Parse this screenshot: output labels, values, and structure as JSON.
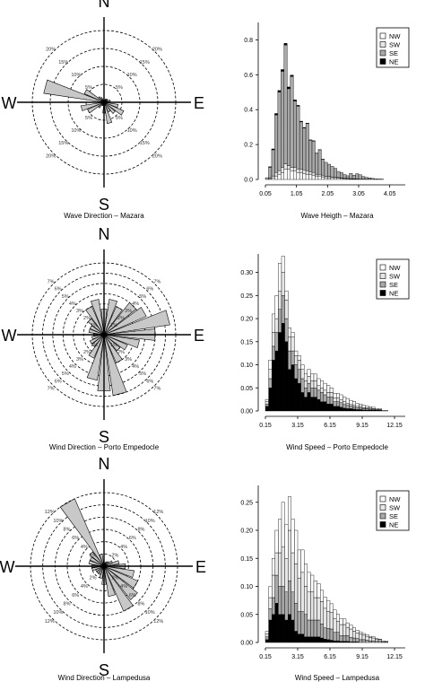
{
  "chart_data": [
    {
      "type": "polar-bar",
      "caption": "Wave Direction – Mazara",
      "compass": [
        "N",
        "E",
        "S",
        "W"
      ],
      "rings": [
        5,
        10,
        15,
        20
      ],
      "ring_unit": "%",
      "petals": [
        {
          "deg": 0,
          "value": 0.6
        },
        {
          "deg": 15,
          "value": 0.6
        },
        {
          "deg": 30,
          "value": 1.0
        },
        {
          "deg": 45,
          "value": 1.2
        },
        {
          "deg": 60,
          "value": 1.2
        },
        {
          "deg": 75,
          "value": 1.8
        },
        {
          "deg": 90,
          "value": 1.5
        },
        {
          "deg": 105,
          "value": 4.0
        },
        {
          "deg": 120,
          "value": 6.0
        },
        {
          "deg": 135,
          "value": 4.0
        },
        {
          "deg": 150,
          "value": 3.0
        },
        {
          "deg": 165,
          "value": 6.0
        },
        {
          "deg": 180,
          "value": 3.0
        },
        {
          "deg": 195,
          "value": 1.0
        },
        {
          "deg": 210,
          "value": 1.0
        },
        {
          "deg": 225,
          "value": 2.0
        },
        {
          "deg": 240,
          "value": 5.0
        },
        {
          "deg": 255,
          "value": 6.5
        },
        {
          "deg": 270,
          "value": 1.5
        },
        {
          "deg": 285,
          "value": 17.0
        },
        {
          "deg": 300,
          "value": 6.0
        },
        {
          "deg": 315,
          "value": 2.0
        },
        {
          "deg": 330,
          "value": 1.5
        },
        {
          "deg": 345,
          "value": 0.8
        }
      ]
    },
    {
      "type": "bar",
      "stacked": true,
      "caption": "Wave Heigth – Mazara",
      "x_ticks": [
        "0.05",
        "1.05",
        "2.05",
        "3.05",
        "4.05"
      ],
      "y_ticks": [
        "0.0",
        "0.2",
        "0.4",
        "0.6",
        "0.8"
      ],
      "xlim": [
        0.05,
        4.55
      ],
      "ylim": [
        0,
        0.9
      ],
      "legend": [
        "NW",
        "SW",
        "SE",
        "NE"
      ],
      "legend_position": "top-right",
      "bin_start": 0.05,
      "bin_width": 0.1,
      "series": [
        {
          "name": "NW",
          "values": [
            0,
            0.005,
            0.01,
            0.02,
            0.03,
            0.04,
            0.06,
            0.06,
            0.05,
            0.05,
            0.04,
            0.04,
            0.035,
            0.03,
            0.03,
            0.025,
            0.02,
            0.02,
            0.015,
            0.01,
            0.01,
            0.01,
            0.01,
            0.008,
            0.006,
            0.005,
            0.004,
            0.003,
            0.002,
            0.002,
            0.001,
            0.001,
            0.001,
            0.001,
            0.001,
            0,
            0,
            0,
            0,
            0,
            0,
            0,
            0,
            0
          ]
        },
        {
          "name": "SW",
          "values": [
            0,
            0.005,
            0.01,
            0.02,
            0.02,
            0.03,
            0.03,
            0.02,
            0.02,
            0.02,
            0.02,
            0.02,
            0.02,
            0.02,
            0.015,
            0.015,
            0.01,
            0.01,
            0.01,
            0.008,
            0.007,
            0.005,
            0.004,
            0.003,
            0.003,
            0.003,
            0.002,
            0.002,
            0.002,
            0.001,
            0.001,
            0.001,
            0.001,
            0,
            0,
            0,
            0,
            0,
            0,
            0,
            0,
            0,
            0,
            0
          ]
        },
        {
          "name": "SE",
          "values": [
            0.01,
            0.06,
            0.15,
            0.33,
            0.45,
            0.55,
            0.68,
            0.44,
            0.52,
            0.38,
            0.36,
            0.27,
            0.24,
            0.27,
            0.18,
            0.18,
            0.12,
            0.14,
            0.09,
            0.08,
            0.07,
            0.06,
            0.05,
            0.035,
            0.03,
            0.02,
            0.015,
            0.03,
            0.02,
            0.03,
            0.025,
            0.015,
            0.01,
            0.008,
            0.005,
            0.004,
            0.003,
            0.002,
            0,
            0,
            0,
            0,
            0,
            0
          ]
        },
        {
          "name": "NE",
          "values": [
            0,
            0.003,
            0.005,
            0.008,
            0.01,
            0.01,
            0.01,
            0.01,
            0.008,
            0.006,
            0.005,
            0.004,
            0.003,
            0.003,
            0.002,
            0.002,
            0.001,
            0.001,
            0.001,
            0,
            0,
            0,
            0,
            0,
            0,
            0,
            0,
            0,
            0,
            0,
            0,
            0,
            0,
            0,
            0,
            0,
            0,
            0,
            0,
            0,
            0,
            0,
            0,
            0
          ]
        }
      ]
    },
    {
      "type": "polar-bar",
      "caption": "Wind Direction – Porto Empedocle",
      "compass": [
        "N",
        "E",
        "S",
        "W"
      ],
      "rings": [
        1,
        2,
        3,
        4,
        5,
        6,
        7
      ],
      "ring_unit": "%",
      "petals": [
        {
          "deg": 0,
          "value": 2.5
        },
        {
          "deg": 15,
          "value": 3.5
        },
        {
          "deg": 30,
          "value": 3.0
        },
        {
          "deg": 45,
          "value": 4.0
        },
        {
          "deg": 60,
          "value": 4.5
        },
        {
          "deg": 75,
          "value": 6.5
        },
        {
          "deg": 90,
          "value": 5.0
        },
        {
          "deg": 105,
          "value": 3.5
        },
        {
          "deg": 120,
          "value": 2.5
        },
        {
          "deg": 135,
          "value": 2.0
        },
        {
          "deg": 150,
          "value": 3.0
        },
        {
          "deg": 165,
          "value": 6.0
        },
        {
          "deg": 180,
          "value": 5.5
        },
        {
          "deg": 195,
          "value": 4.5
        },
        {
          "deg": 210,
          "value": 2.5
        },
        {
          "deg": 225,
          "value": 1.5
        },
        {
          "deg": 240,
          "value": 1.5
        },
        {
          "deg": 255,
          "value": 1.2
        },
        {
          "deg": 270,
          "value": 1.0
        },
        {
          "deg": 285,
          "value": 1.5
        },
        {
          "deg": 300,
          "value": 1.5
        },
        {
          "deg": 315,
          "value": 2.0
        },
        {
          "deg": 330,
          "value": 3.0
        },
        {
          "deg": 345,
          "value": 3.5
        }
      ]
    },
    {
      "type": "bar",
      "stacked": true,
      "caption": "Wind Speed – Porto Empedocle",
      "x_ticks": [
        "0.15",
        "3.15",
        "6.15",
        "9.15",
        "12.15"
      ],
      "y_ticks": [
        "0.00",
        "0.05",
        "0.10",
        "0.15",
        "0.20",
        "0.25",
        "0.30"
      ],
      "xlim": [
        0.15,
        13.15
      ],
      "ylim": [
        0,
        0.34
      ],
      "legend": [
        "NW",
        "SW",
        "SE",
        "NE"
      ],
      "legend_position": "top-right",
      "bin_start": 0.15,
      "bin_width": 0.3,
      "series": [
        {
          "name": "NE",
          "values": [
            0.01,
            0.05,
            0.11,
            0.13,
            0.17,
            0.19,
            0.15,
            0.09,
            0.1,
            0.07,
            0.06,
            0.04,
            0.03,
            0.04,
            0.03,
            0.03,
            0.025,
            0.02,
            0.02,
            0.015,
            0.015,
            0.01,
            0.01,
            0.008,
            0.006,
            0.005,
            0.005,
            0.004,
            0.003,
            0.003,
            0.002,
            0.002,
            0.002,
            0.002,
            0.001,
            0.001,
            0,
            0,
            0,
            0,
            0,
            0
          ]
        },
        {
          "name": "SE",
          "values": [
            0.005,
            0.02,
            0.03,
            0.04,
            0.05,
            0.06,
            0.05,
            0.04,
            0.03,
            0.03,
            0.03,
            0.03,
            0.02,
            0.02,
            0.02,
            0.02,
            0.02,
            0.02,
            0.015,
            0.015,
            0.015,
            0.01,
            0.01,
            0.01,
            0.008,
            0.007,
            0.006,
            0.005,
            0.004,
            0.004,
            0.003,
            0.003,
            0.002,
            0.002,
            0.001,
            0.001,
            0,
            0,
            0,
            0,
            0,
            0
          ]
        },
        {
          "name": "SW",
          "values": [
            0.005,
            0.02,
            0.03,
            0.03,
            0.04,
            0.05,
            0.04,
            0.03,
            0.03,
            0.02,
            0.02,
            0.02,
            0.015,
            0.015,
            0.015,
            0.015,
            0.01,
            0.01,
            0.01,
            0.01,
            0.01,
            0.008,
            0.008,
            0.007,
            0.006,
            0.005,
            0.004,
            0.004,
            0.003,
            0.003,
            0.002,
            0.002,
            0.002,
            0.001,
            0.001,
            0.001,
            0,
            0,
            0,
            0,
            0,
            0
          ]
        },
        {
          "name": "NW",
          "values": [
            0.005,
            0.02,
            0.04,
            0.05,
            0.06,
            0.035,
            0.02,
            0.02,
            0.01,
            0.01,
            0.01,
            0.01,
            0.015,
            0.015,
            0.015,
            0.015,
            0.015,
            0.015,
            0.015,
            0.015,
            0.01,
            0.01,
            0.01,
            0.01,
            0.01,
            0.01,
            0.008,
            0.008,
            0.006,
            0.005,
            0.005,
            0.004,
            0.003,
            0.003,
            0.002,
            0.002,
            0.001,
            0.001,
            0,
            0,
            0,
            0
          ]
        }
      ]
    },
    {
      "type": "polar-bar",
      "caption": "Wind Direction – Lampedusa",
      "compass": [
        "N",
        "E",
        "S",
        "W"
      ],
      "rings": [
        2,
        4,
        6,
        8,
        10,
        12
      ],
      "ring_unit": "%",
      "petals": [
        {
          "deg": 0,
          "value": 0.5
        },
        {
          "deg": 15,
          "value": 0.6
        },
        {
          "deg": 30,
          "value": 0.8
        },
        {
          "deg": 45,
          "value": 1.0
        },
        {
          "deg": 60,
          "value": 1.5
        },
        {
          "deg": 75,
          "value": 2.5
        },
        {
          "deg": 90,
          "value": 3.5
        },
        {
          "deg": 105,
          "value": 5.0
        },
        {
          "deg": 120,
          "value": 6.0
        },
        {
          "deg": 135,
          "value": 7.0
        },
        {
          "deg": 150,
          "value": 8.0
        },
        {
          "deg": 165,
          "value": 5.0
        },
        {
          "deg": 180,
          "value": 3.0
        },
        {
          "deg": 195,
          "value": 2.0
        },
        {
          "deg": 210,
          "value": 1.5
        },
        {
          "deg": 225,
          "value": 1.5
        },
        {
          "deg": 240,
          "value": 1.5
        },
        {
          "deg": 255,
          "value": 2.0
        },
        {
          "deg": 270,
          "value": 2.0
        },
        {
          "deg": 285,
          "value": 2.5
        },
        {
          "deg": 300,
          "value": 2.5
        },
        {
          "deg": 315,
          "value": 3.0
        },
        {
          "deg": 330,
          "value": 12.0
        },
        {
          "deg": 345,
          "value": 2.0
        }
      ]
    },
    {
      "type": "bar",
      "stacked": true,
      "caption": "Wind Speed – Lampedusa",
      "x_ticks": [
        "0.15",
        "3.15",
        "6.15",
        "9.15",
        "12.15"
      ],
      "y_ticks": [
        "0.00",
        "0.05",
        "0.10",
        "0.15",
        "0.20",
        "0.25"
      ],
      "xlim": [
        0.15,
        13.15
      ],
      "ylim": [
        0,
        0.28
      ],
      "legend": [
        "NW",
        "SW",
        "SE",
        "NE"
      ],
      "legend_position": "top-right",
      "bin_start": 0.15,
      "bin_width": 0.3,
      "series": [
        {
          "name": "NE",
          "values": [
            0.005,
            0.04,
            0.05,
            0.07,
            0.05,
            0.05,
            0.04,
            0.05,
            0.04,
            0.02,
            0.015,
            0.015,
            0.01,
            0.01,
            0.01,
            0.01,
            0.01,
            0.008,
            0.006,
            0.005,
            0.004,
            0.003,
            0.003,
            0.002,
            0.002,
            0.002,
            0.001,
            0.001,
            0.001,
            0,
            0,
            0,
            0,
            0,
            0,
            0,
            0,
            0,
            0,
            0,
            0,
            0
          ]
        },
        {
          "name": "SE",
          "values": [
            0.005,
            0.02,
            0.03,
            0.05,
            0.05,
            0.05,
            0.05,
            0.06,
            0.05,
            0.05,
            0.04,
            0.04,
            0.04,
            0.03,
            0.03,
            0.03,
            0.03,
            0.025,
            0.02,
            0.02,
            0.02,
            0.015,
            0.015,
            0.01,
            0.01,
            0.01,
            0.008,
            0.007,
            0.006,
            0.005,
            0.005,
            0.004,
            0.003,
            0.003,
            0.002,
            0.002,
            0.001,
            0.001,
            0,
            0,
            0,
            0
          ]
        },
        {
          "name": "SW",
          "values": [
            0.005,
            0.02,
            0.04,
            0.04,
            0.06,
            0.07,
            0.06,
            0.09,
            0.07,
            0.07,
            0.06,
            0.07,
            0.05,
            0.05,
            0.05,
            0.04,
            0.04,
            0.04,
            0.035,
            0.03,
            0.03,
            0.025,
            0.02,
            0.02,
            0.02,
            0.015,
            0.015,
            0.012,
            0.01,
            0.01,
            0.008,
            0.007,
            0.006,
            0.005,
            0.004,
            0.003,
            0.002,
            0.001,
            0,
            0,
            0,
            0
          ]
        },
        {
          "name": "NW",
          "values": [
            0.005,
            0.02,
            0.03,
            0.04,
            0.06,
            0.08,
            0.06,
            0.06,
            0.06,
            0.06,
            0.05,
            0.04,
            0.04,
            0.035,
            0.03,
            0.03,
            0.025,
            0.02,
            0.02,
            0.02,
            0.015,
            0.015,
            0.012,
            0.01,
            0.01,
            0.008,
            0.007,
            0.006,
            0.005,
            0.004,
            0.003,
            0.003,
            0.002,
            0.002,
            0.001,
            0.001,
            0,
            0,
            0,
            0,
            0,
            0
          ]
        }
      ]
    }
  ],
  "colors": {
    "petal_fill": "#c8c8c8",
    "NW": "#ffffff",
    "SW": "#e6e6e6",
    "SE": "#a8a8a8",
    "NE": "#000000",
    "ink": "#000000"
  }
}
